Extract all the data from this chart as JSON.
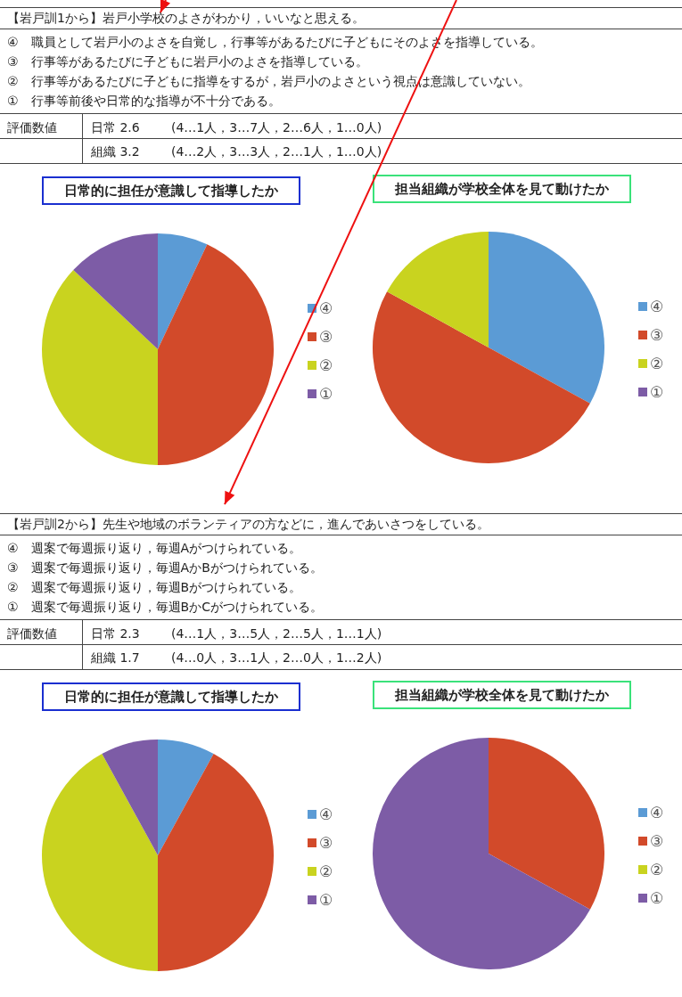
{
  "chart_data": [
    {
      "type": "pie",
      "title": "日常的に担任が意識して指導したか",
      "categories": [
        "④",
        "③",
        "②",
        "①"
      ],
      "values": [
        7,
        43,
        37,
        13
      ],
      "colors": [
        "#5b9bd5",
        "#d24a2a",
        "#c9d31f",
        "#7d5ca6"
      ],
      "legend": "right",
      "annotations": [
        "【岩戸訓1から】岩戸小学校のよさがわかり，いいなと思える。",
        "④　職員として岩戸小のよさを自覚し，行事等があるたびに子どもにそのよさを指導している。",
        "③　行事等があるたびに子どもに岩戸小のよさを指導している。",
        "②　行事等があるたびに子どもに指導をするが，岩戸小のよさという視点は意識していない。",
        "①　行事等前後や日常的な指導が不十分である。",
        "評価数値",
        "日常 2.6",
        "(4…1人，3…7人，2…6人，1…0人)",
        "組織 3.2",
        "(4…2人，3…3人，2…1人，1…0人)"
      ]
    },
    {
      "type": "pie",
      "title": "担当組織が学校全体を見て動けたか",
      "categories": [
        "④",
        "③",
        "②",
        "①"
      ],
      "values": [
        33,
        50,
        17,
        0
      ],
      "colors": [
        "#5b9bd5",
        "#d24a2a",
        "#c9d31f",
        "#7d5ca6"
      ],
      "legend": "right"
    },
    {
      "type": "pie",
      "title": "日常的に担任が意識して指導したか",
      "categories": [
        "④",
        "③",
        "②",
        "①"
      ],
      "values": [
        8,
        42,
        42,
        8
      ],
      "colors": [
        "#5b9bd5",
        "#d24a2a",
        "#c9d31f",
        "#7d5ca6"
      ],
      "legend": "right",
      "annotations": [
        "【岩戸訓2から】先生や地域のボランティアの方などに，進んであいさつをしている。",
        "④　週案で毎週振り返り，毎週Aがつけられている。",
        "③　週案で毎週振り返り，毎週AかBがつけられている。",
        "②　週案で毎週振り返り，毎週Bがつけられている。",
        "①　週案で毎週振り返り，毎週BかCがつけられている。",
        "評価数値",
        "日常 2.3",
        "(4…1人，3…5人，2…5人，1…1人)",
        "組織 1.7",
        "(4…0人，3…1人，2…0人，1…2人)"
      ]
    },
    {
      "type": "pie",
      "title": "担当組織が学校全体を見て動けたか",
      "categories": [
        "④",
        "③",
        "②",
        "①"
      ],
      "values": [
        0,
        33,
        0,
        67
      ],
      "colors": [
        "#5b9bd5",
        "#d24a2a",
        "#c9d31f",
        "#7d5ca6"
      ],
      "legend": "right"
    }
  ]
}
